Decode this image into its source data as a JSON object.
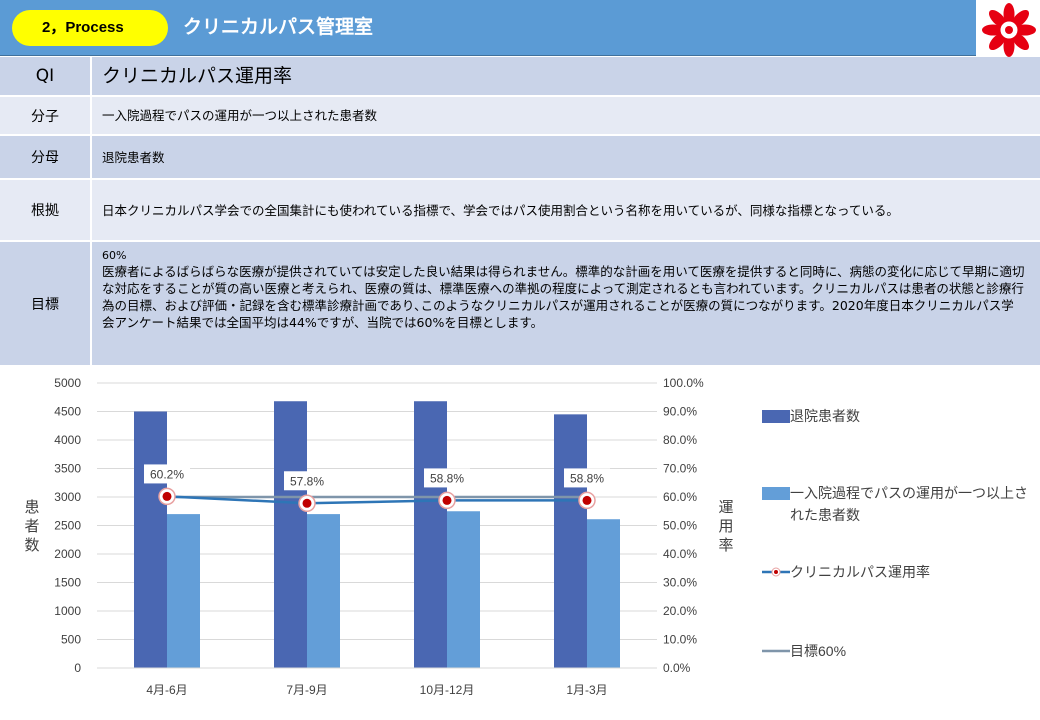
{
  "header": {
    "badge": "2，Process",
    "title": "クリニカルパス管理室"
  },
  "logo": {
    "icon": "hospital-emblem-icon",
    "color": "#e60012"
  },
  "info": {
    "qi_label": "QI",
    "qi_value": "クリニカルパス運用率",
    "numerator_label": "分子",
    "numerator_value": "一入院過程でパスの運用が一つ以上された患者数",
    "denominator_label": "分母",
    "denominator_value": "退院患者数",
    "basis_label": "根拠",
    "basis_value": "日本クリニカルパス学会での全国集計にも使われている指標で、学会ではパス使用割合という名称を用いているが、同様な指標となっている。",
    "target_label": "目標",
    "target_value_title": "60%",
    "target_value_body": "医療者によるばらばらな医療が提供されていては安定した良い結果は得られません。標準的な計画を用いて医療を提供すると同時に、病態の変化に応じて早期に適切な対応をすることが質の高い医療と考えられ、医療の質は、標準医療への準拠の程度によって測定されるとも言われています。クリニカルパスは患者の状態と診療行為の目標、および評価・記録を含む標準診療計画であり､このようなクリニカルパスが運用されることが医療の質につながります。2020年度日本クリニカルパス学会アンケート結果では全国平均は44%ですが、当院では60%を目標とします。"
  },
  "chart_data": {
    "type": "bar",
    "categories": [
      "4月-6月",
      "7月-9月",
      "10月-12月",
      "1月-3月"
    ],
    "series": [
      {
        "name": "退院患者数",
        "type": "bar",
        "axis": "left",
        "color": "#4a67b2",
        "values": [
          4500,
          4680,
          4680,
          4450
        ]
      },
      {
        "name": "一入院過程でパスの運用が一つ以上された患者数",
        "type": "bar",
        "axis": "left",
        "color": "#639ed8",
        "values": [
          2700,
          2700,
          2750,
          2610
        ]
      },
      {
        "name": "クリニカルパス運用率",
        "type": "line",
        "axis": "right",
        "color": "#2e75b6",
        "values": [
          60.2,
          57.8,
          58.8,
          58.8
        ],
        "labels": [
          "60.2%",
          "57.8%",
          "58.8%",
          "58.8%"
        ]
      },
      {
        "name": "目標60%",
        "type": "line",
        "axis": "right",
        "color": "#7f95aa",
        "values": [
          60,
          60,
          60,
          60
        ]
      }
    ],
    "ylabel": "患者数",
    "y2label": "運用率",
    "ylim": [
      0,
      5000
    ],
    "y2lim": [
      0,
      100
    ],
    "yticks": [
      "0",
      "500",
      "1000",
      "1500",
      "2000",
      "2500",
      "3000",
      "3500",
      "4000",
      "4500",
      "5000"
    ],
    "y2ticks": [
      "0.0%",
      "10.0%",
      "20.0%",
      "30.0%",
      "40.0%",
      "50.0%",
      "60.0%",
      "70.0%",
      "80.0%",
      "90.0%",
      "100.0%"
    ],
    "grid": true,
    "legend": "right"
  }
}
